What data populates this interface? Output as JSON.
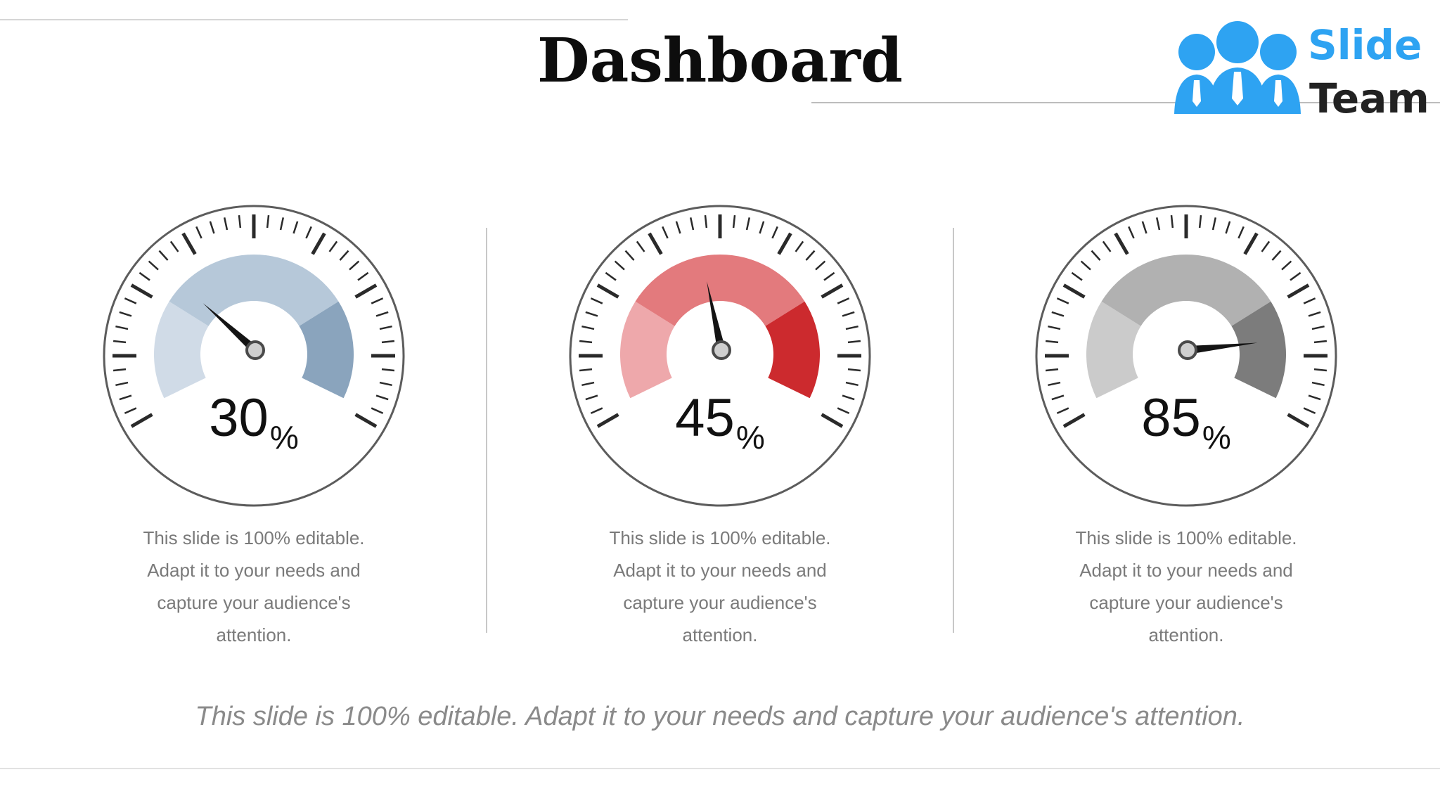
{
  "title": "Dashboard",
  "logo": {
    "line1": "Slide",
    "line2": "Team"
  },
  "gauges": [
    {
      "value": 30,
      "value_text": "30",
      "unit": "%",
      "colors": {
        "light": "#d0dbe7",
        "mid": "#b6c8d9",
        "dark": "#8aa4bd"
      },
      "caption": "This slide is 100% editable.\nAdapt it to your needs and\ncapture your audience's\nattention."
    },
    {
      "value": 45,
      "value_text": "45",
      "unit": "%",
      "colors": {
        "light": "#eea8ab",
        "mid": "#e37a7d",
        "dark": "#cc2a2e"
      },
      "caption": "This slide is 100% editable.\nAdapt it to your needs and\ncapture your audience's\nattention."
    },
    {
      "value": 85,
      "value_text": "85",
      "unit": "%",
      "colors": {
        "light": "#cbcbcb",
        "mid": "#b1b1b1",
        "dark": "#7c7c7c"
      },
      "caption": "This slide is 100% editable.\nAdapt it to your needs and\ncapture your audience's\nattention."
    }
  ],
  "footer": "This slide is 100% editable. Adapt it to your needs and capture your audience's attention.",
  "icons": [
    "team-logo-icon",
    "gauge-icon"
  ]
}
